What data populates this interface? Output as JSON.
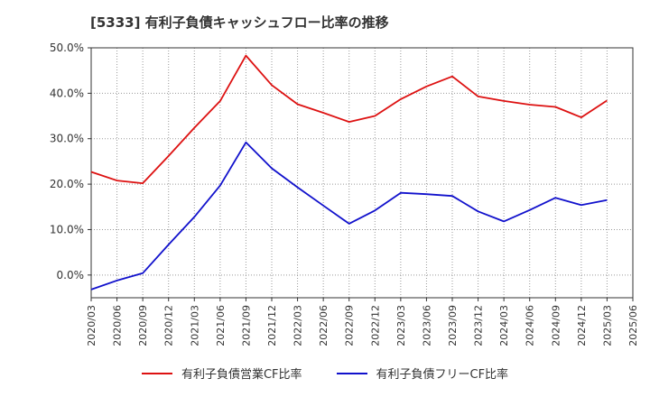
{
  "chart_data": {
    "type": "line",
    "title": "[5333]  有利子負債キャッシュフロー比率の推移",
    "x": [
      "2020/03",
      "2020/06",
      "2020/09",
      "2020/12",
      "2021/03",
      "2021/06",
      "2021/09",
      "2021/12",
      "2022/03",
      "2022/06",
      "2022/09",
      "2022/12",
      "2023/03",
      "2023/06",
      "2023/09",
      "2023/12",
      "2024/03",
      "2024/06",
      "2024/09",
      "2024/12",
      "2025/03",
      "2025/06"
    ],
    "ylim": [
      -5,
      50
    ],
    "y_ticks": [
      "0.0%",
      "10.0%",
      "20.0%",
      "30.0%",
      "40.0%",
      "50.0%"
    ],
    "y_tick_values": [
      0,
      10,
      20,
      30,
      40,
      50
    ],
    "grid": true,
    "legend_position": "bottom",
    "series": [
      {
        "name": "有利子負債営業CF比率",
        "color": "#dd1111",
        "values": [
          22.7,
          20.8,
          20.2,
          26.2,
          32.4,
          38.3,
          48.3,
          41.8,
          37.6,
          35.7,
          33.7,
          35.0,
          38.7,
          41.5,
          43.7,
          39.3,
          38.3,
          37.5,
          37.0,
          34.7,
          38.4,
          null
        ]
      },
      {
        "name": "有利子負債フリーCF比率",
        "color": "#1111cc",
        "values": [
          -3.2,
          -1.2,
          0.4,
          6.7,
          12.8,
          19.7,
          29.2,
          23.5,
          19.3,
          15.3,
          11.3,
          14.2,
          18.1,
          17.8,
          17.4,
          14.0,
          11.8,
          14.3,
          17.0,
          15.4,
          16.5,
          null
        ]
      }
    ]
  }
}
